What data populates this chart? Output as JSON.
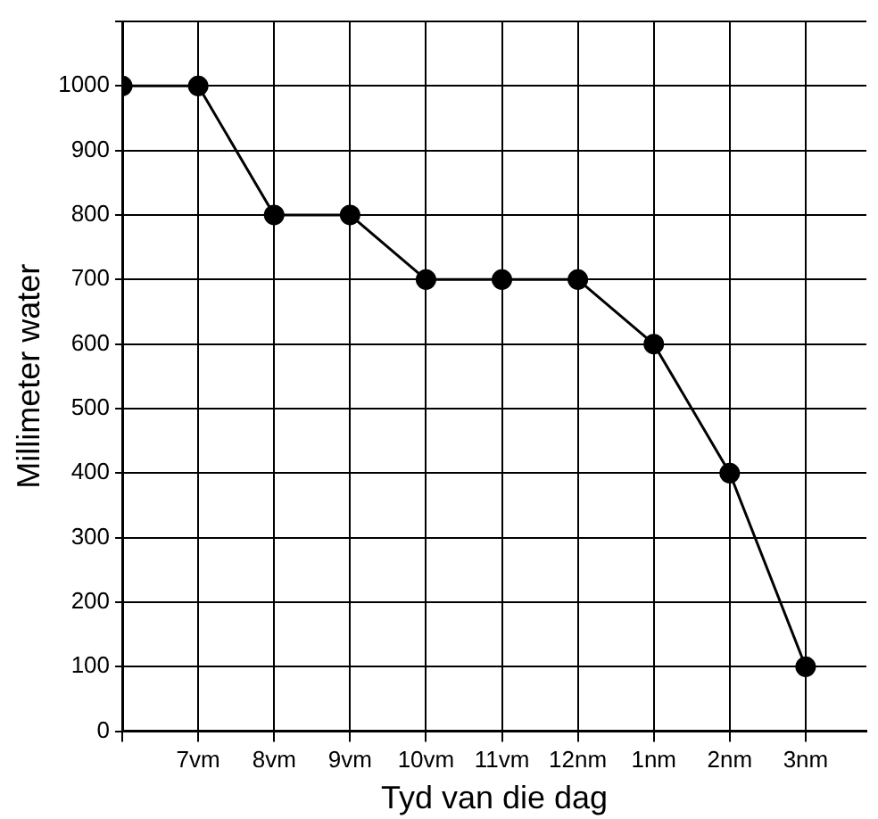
{
  "chart_data": {
    "type": "line",
    "xlabel": "Tyd van die dag",
    "ylabel": "Millimeter water",
    "categories": [
      null,
      "7vm",
      "8vm",
      "9vm",
      "10vm",
      "11vm",
      "12nm",
      "1nm",
      "2nm",
      "3nm"
    ],
    "series": [
      {
        "color": "#000000",
        "values": [
          1000,
          1000,
          800,
          800,
          700,
          700,
          700,
          600,
          400,
          100
        ]
      }
    ],
    "ylim": [
      0,
      1100
    ],
    "yticks": [
      0,
      100,
      200,
      300,
      400,
      500,
      600,
      700,
      800,
      900,
      1000,
      {
        "value": 1100,
        "label": null
      }
    ],
    "grid": true,
    "legend": false,
    "marker": "circle",
    "line_style": "solid"
  }
}
